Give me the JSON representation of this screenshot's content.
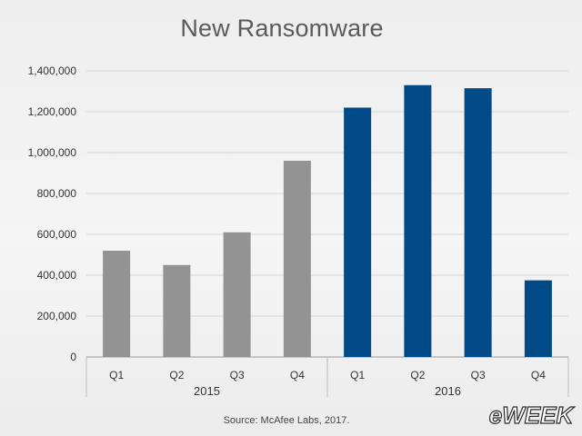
{
  "chart_data": {
    "type": "bar",
    "title": "New Ransomware",
    "xlabel": "",
    "ylabel": "",
    "ylim": [
      0,
      1400000
    ],
    "yticks": [
      "0",
      "200,000",
      "400,000",
      "600,000",
      "800,000",
      "1,000,000",
      "1,200,000",
      "1,400,000"
    ],
    "ytick_values": [
      0,
      200000,
      400000,
      600000,
      800000,
      1000000,
      1200000,
      1400000
    ],
    "grid": true,
    "categories": [
      "Q1",
      "Q2",
      "Q3",
      "Q4",
      "Q1",
      "Q2",
      "Q3",
      "Q4"
    ],
    "groups": [
      {
        "label": "2015",
        "color": "#939393",
        "count": 4
      },
      {
        "label": "2016",
        "color": "#004b87",
        "count": 4
      }
    ],
    "values": [
      520000,
      450000,
      610000,
      960000,
      1220000,
      1330000,
      1315000,
      375000
    ],
    "source": "Source: McAfee Labs, 2017."
  },
  "watermark": {
    "text": "eWEEK"
  }
}
